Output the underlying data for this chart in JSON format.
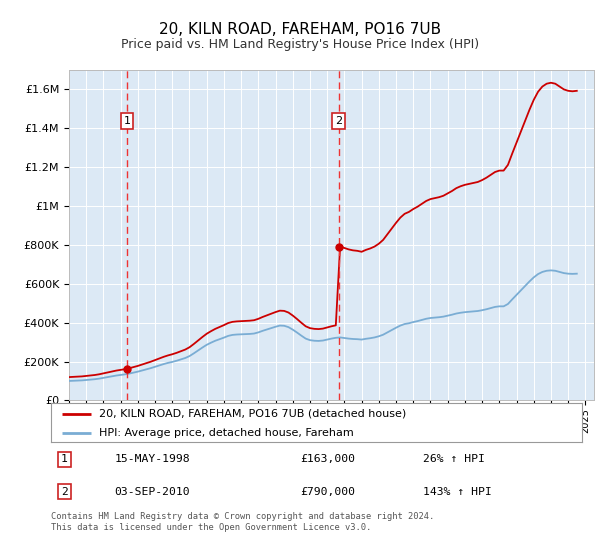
{
  "title": "20, KILN ROAD, FAREHAM, PO16 7UB",
  "subtitle": "Price paid vs. HM Land Registry's House Price Index (HPI)",
  "title_fontsize": 11,
  "subtitle_fontsize": 9,
  "plot_bg_color": "#dce9f5",
  "ylim": [
    0,
    1700000
  ],
  "xlim_start": 1995.0,
  "xlim_end": 2025.5,
  "yticks": [
    0,
    200000,
    400000,
    600000,
    800000,
    1000000,
    1200000,
    1400000,
    1600000
  ],
  "ytick_labels": [
    "£0",
    "£200K",
    "£400K",
    "£600K",
    "£800K",
    "£1M",
    "£1.2M",
    "£1.4M",
    "£1.6M"
  ],
  "hpi_color": "#7aadd4",
  "price_color": "#cc0000",
  "vline_color": "#ee3333",
  "sale1_year": 1998.37,
  "sale1_price": 163000,
  "sale1_label": "1",
  "sale1_date": "15-MAY-1998",
  "sale1_pct": "26%",
  "sale2_year": 2010.67,
  "sale2_price": 790000,
  "sale2_label": "2",
  "sale2_date": "03-SEP-2010",
  "sale2_pct": "143%",
  "legend_price_label": "20, KILN ROAD, FAREHAM, PO16 7UB (detached house)",
  "legend_hpi_label": "HPI: Average price, detached house, Fareham",
  "footnote": "Contains HM Land Registry data © Crown copyright and database right 2024.\nThis data is licensed under the Open Government Licence v3.0.",
  "hpi_index": {
    "years": [
      1995.0,
      1995.25,
      1995.5,
      1995.75,
      1996.0,
      1996.25,
      1996.5,
      1996.75,
      1997.0,
      1997.25,
      1997.5,
      1997.75,
      1998.0,
      1998.25,
      1998.5,
      1998.75,
      1999.0,
      1999.25,
      1999.5,
      1999.75,
      2000.0,
      2000.25,
      2000.5,
      2000.75,
      2001.0,
      2001.25,
      2001.5,
      2001.75,
      2002.0,
      2002.25,
      2002.5,
      2002.75,
      2003.0,
      2003.25,
      2003.5,
      2003.75,
      2004.0,
      2004.25,
      2004.5,
      2004.75,
      2005.0,
      2005.25,
      2005.5,
      2005.75,
      2006.0,
      2006.25,
      2006.5,
      2006.75,
      2007.0,
      2007.25,
      2007.5,
      2007.75,
      2008.0,
      2008.25,
      2008.5,
      2008.75,
      2009.0,
      2009.25,
      2009.5,
      2009.75,
      2010.0,
      2010.25,
      2010.5,
      2010.75,
      2011.0,
      2011.25,
      2011.5,
      2011.75,
      2012.0,
      2012.25,
      2012.5,
      2012.75,
      2013.0,
      2013.25,
      2013.5,
      2013.75,
      2014.0,
      2014.25,
      2014.5,
      2014.75,
      2015.0,
      2015.25,
      2015.5,
      2015.75,
      2016.0,
      2016.25,
      2016.5,
      2016.75,
      2017.0,
      2017.25,
      2017.5,
      2017.75,
      2018.0,
      2018.25,
      2018.5,
      2018.75,
      2019.0,
      2019.25,
      2019.5,
      2019.75,
      2020.0,
      2020.25,
      2020.5,
      2020.75,
      2021.0,
      2021.25,
      2021.5,
      2021.75,
      2022.0,
      2022.25,
      2022.5,
      2022.75,
      2023.0,
      2023.25,
      2023.5,
      2023.75,
      2024.0,
      2024.25,
      2024.5
    ],
    "values": [
      100,
      101,
      102,
      103,
      105,
      107,
      109,
      112,
      116,
      120,
      124,
      128,
      131,
      134,
      138,
      143,
      148,
      154,
      160,
      166,
      173,
      180,
      187,
      193,
      198,
      204,
      211,
      218,
      228,
      242,
      257,
      272,
      286,
      297,
      307,
      315,
      323,
      332,
      337,
      339,
      340,
      341,
      342,
      344,
      350,
      358,
      365,
      372,
      379,
      385,
      384,
      377,
      364,
      349,
      333,
      318,
      310,
      307,
      306,
      308,
      313,
      318,
      322,
      324,
      321,
      318,
      316,
      315,
      313,
      317,
      320,
      324,
      330,
      338,
      350,
      362,
      374,
      385,
      393,
      397,
      403,
      408,
      414,
      420,
      424,
      426,
      428,
      431,
      436,
      441,
      447,
      451,
      454,
      456,
      458,
      460,
      464,
      469,
      475,
      481,
      484,
      484,
      496,
      520,
      543,
      566,
      589,
      612,
      633,
      650,
      661,
      667,
      669,
      667,
      661,
      655,
      652,
      651,
      652
    ]
  }
}
